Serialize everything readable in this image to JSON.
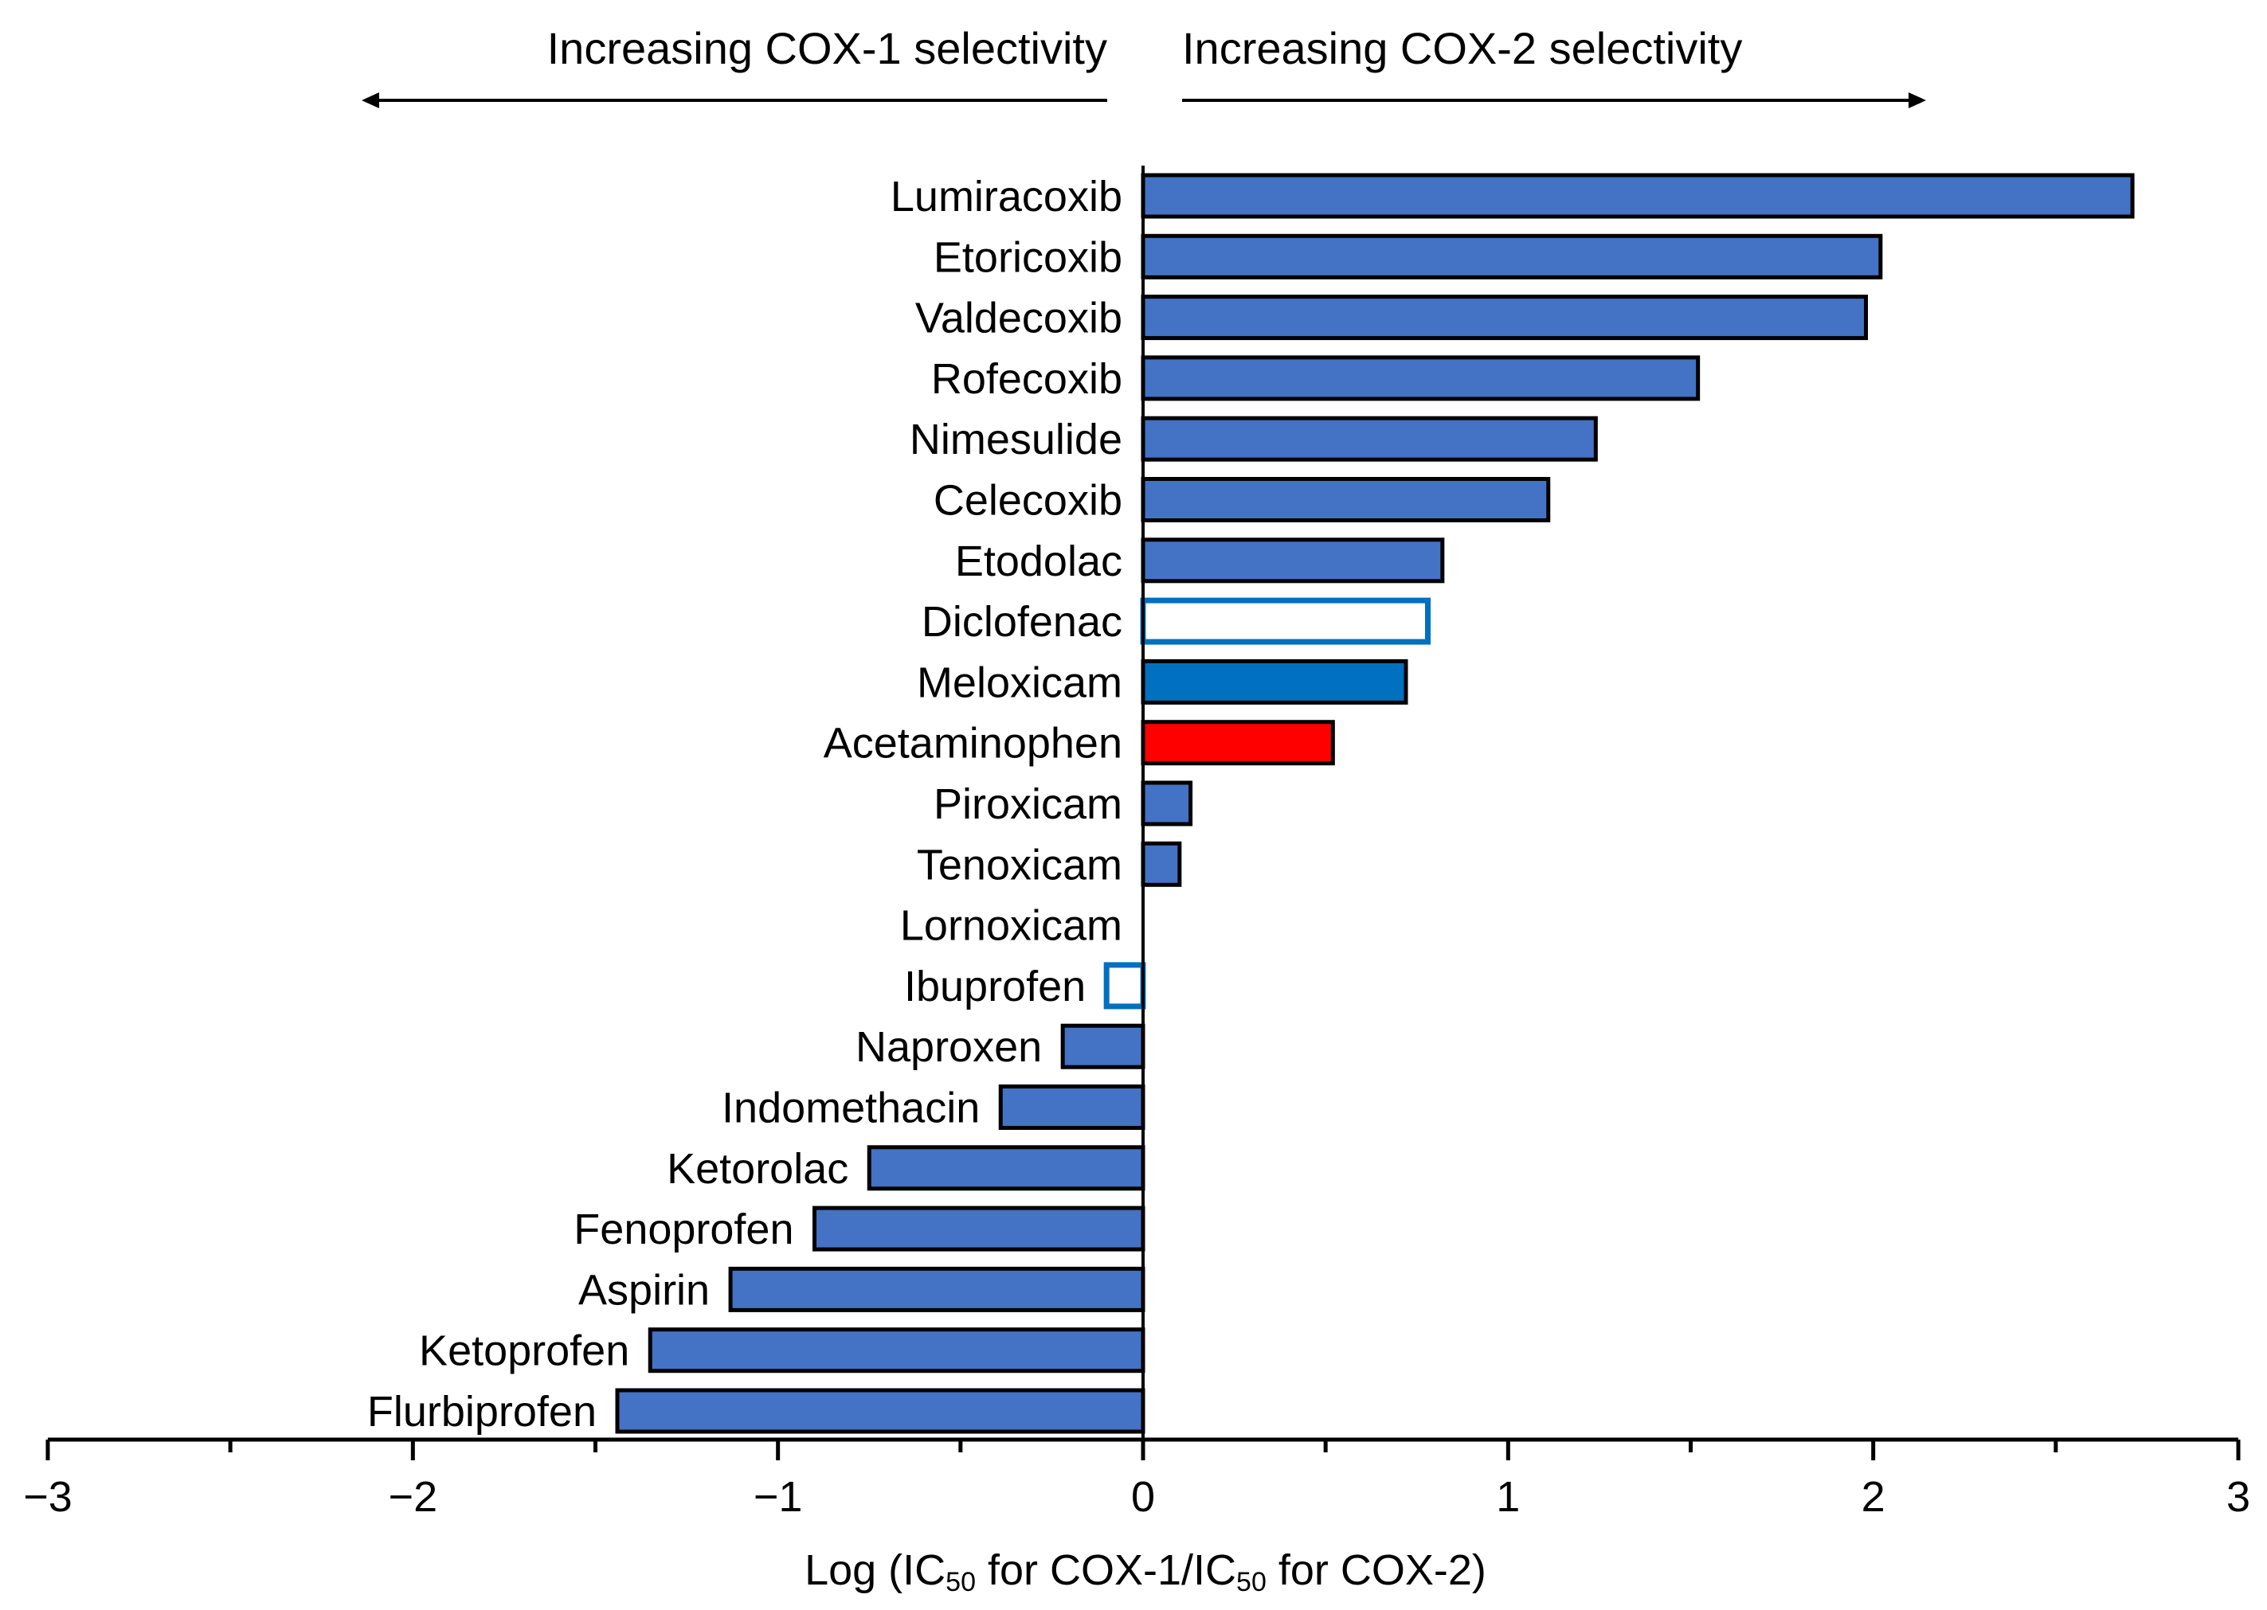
{
  "chart_data": {
    "type": "bar",
    "orientation": "horizontal",
    "xlabel": {
      "prefix": "Log (IC",
      "sub1": "50",
      "mid": " for COX-1/IC",
      "sub2": "50",
      "suffix": " for COX-2)"
    },
    "xlim": [
      -3,
      3
    ],
    "xticks": [
      -3,
      -2,
      -1,
      0,
      1,
      2,
      3
    ],
    "xtick_labels": [
      "−3",
      "−2",
      "−1",
      "0",
      "1",
      "2",
      "3"
    ],
    "grid": false,
    "legend": "none",
    "annotations": [
      {
        "text": "Increasing COX-1 selectivity",
        "direction": "left"
      },
      {
        "text": "Increasing COX-2 selectivity",
        "direction": "right"
      }
    ],
    "colors": {
      "default": "#4472C4",
      "highlight_blue": "#0070C0",
      "highlight_red": "#FF0000",
      "outline": "#000000",
      "open_outline": "#0070C0"
    },
    "bars": [
      {
        "label": "Lumiracoxib",
        "value": 2.71,
        "style": "default"
      },
      {
        "label": "Etoricoxib",
        "value": 2.02,
        "style": "default"
      },
      {
        "label": "Valdecoxib",
        "value": 1.98,
        "style": "default"
      },
      {
        "label": "Rofecoxib",
        "value": 1.52,
        "style": "default"
      },
      {
        "label": "Nimesulide",
        "value": 1.24,
        "style": "default"
      },
      {
        "label": "Celecoxib",
        "value": 1.11,
        "style": "default"
      },
      {
        "label": "Etodolac",
        "value": 0.82,
        "style": "default"
      },
      {
        "label": "Diclofenac",
        "value": 0.78,
        "style": "open"
      },
      {
        "label": "Meloxicam",
        "value": 0.72,
        "style": "highlight_blue"
      },
      {
        "label": "Acetaminophen",
        "value": 0.52,
        "style": "highlight_red"
      },
      {
        "label": "Piroxicam",
        "value": 0.13,
        "style": "default"
      },
      {
        "label": "Tenoxicam",
        "value": 0.1,
        "style": "default"
      },
      {
        "label": "Lornoxicam",
        "value": 0.0,
        "style": "default"
      },
      {
        "label": "Ibuprofen",
        "value": -0.1,
        "style": "open"
      },
      {
        "label": "Naproxen",
        "value": -0.22,
        "style": "default"
      },
      {
        "label": "Indomethacin",
        "value": -0.39,
        "style": "default"
      },
      {
        "label": "Ketorolac",
        "value": -0.75,
        "style": "default"
      },
      {
        "label": "Fenoprofen",
        "value": -0.9,
        "style": "default"
      },
      {
        "label": "Aspirin",
        "value": -1.13,
        "style": "default"
      },
      {
        "label": "Ketoprofen",
        "value": -1.35,
        "style": "default"
      },
      {
        "label": "Flurbiprofen",
        "value": -1.44,
        "style": "default"
      }
    ]
  }
}
